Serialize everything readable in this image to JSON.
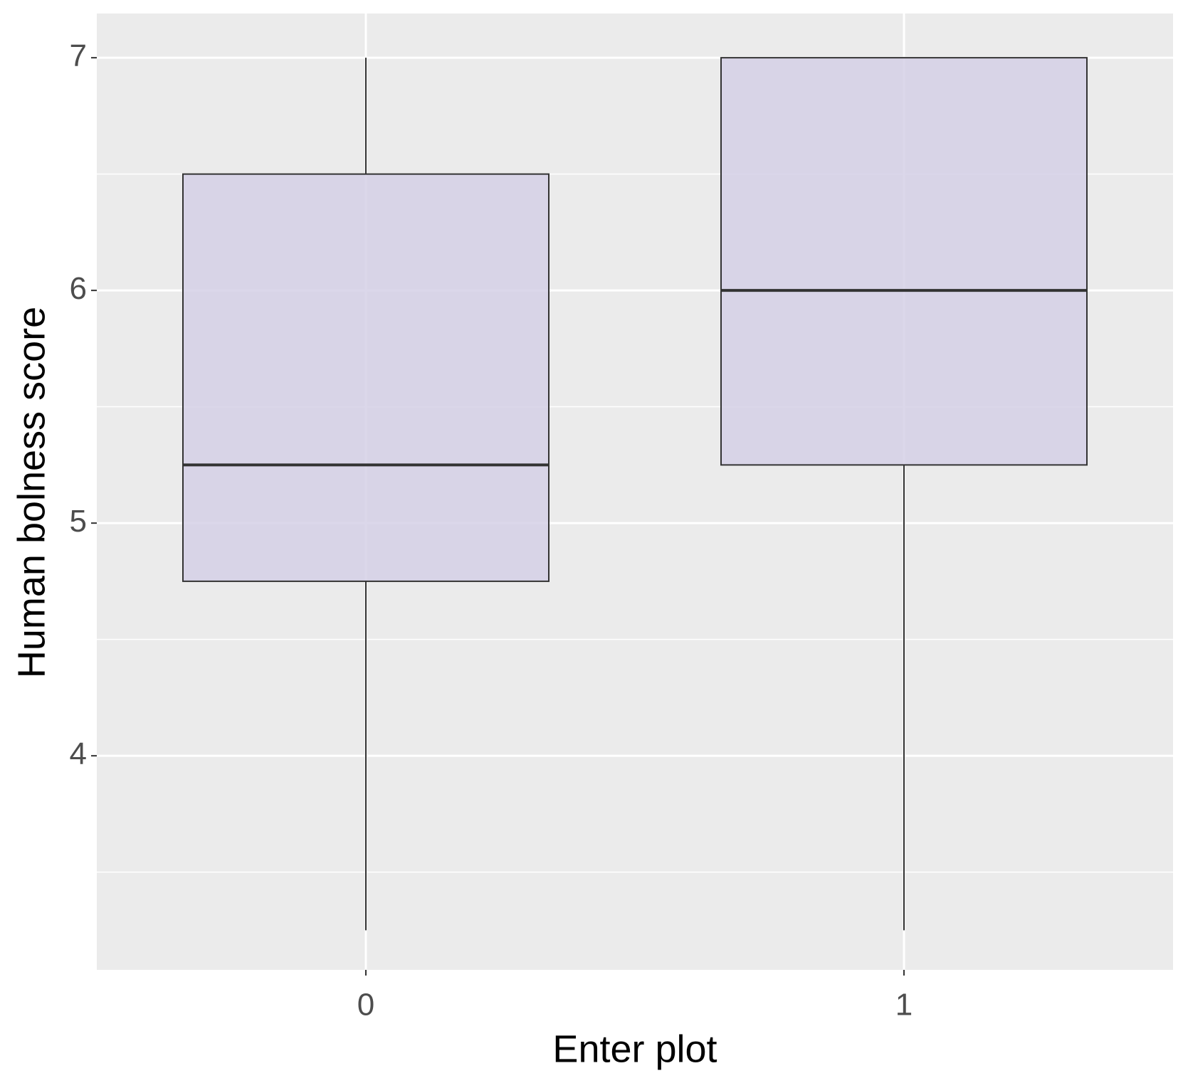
{
  "chart_data": {
    "type": "box",
    "x_label": "Enter plot",
    "y_label": "Human bolness score",
    "categories": [
      "0",
      "1"
    ],
    "boxes": [
      {
        "min": 3.25,
        "q1": 4.75,
        "median": 5.25,
        "q3": 6.5,
        "max": 7
      },
      {
        "min": 3.25,
        "q1": 5.25,
        "median": 6,
        "q3": 7,
        "max": 7
      }
    ],
    "color": "#d5d0e6",
    "ylim": [
      3.08,
      7.19
    ],
    "yticks": [
      4,
      5,
      6,
      7
    ],
    "minor_yticks": [
      3.5,
      4.5,
      5.5,
      6.5
    ],
    "grid": true
  }
}
